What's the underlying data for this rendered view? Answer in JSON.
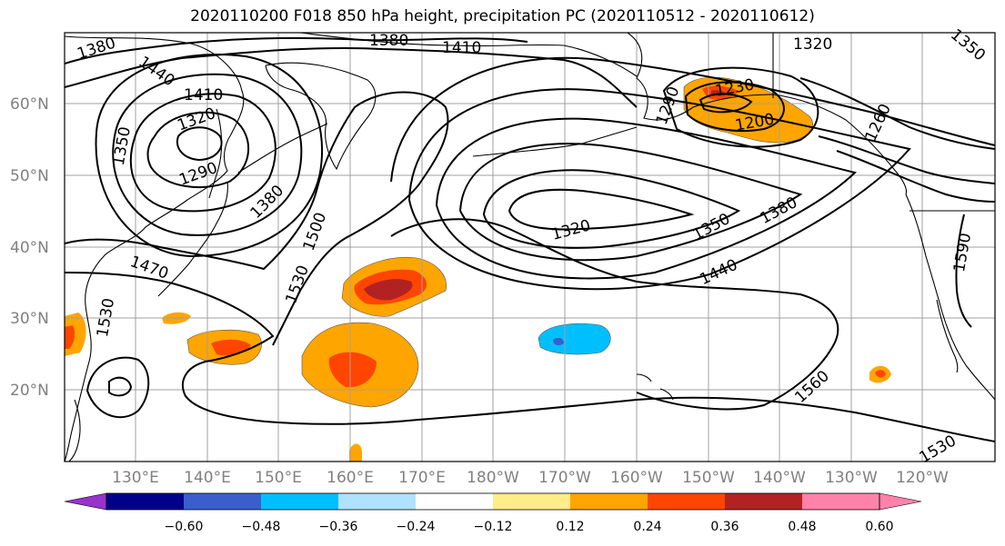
{
  "title": "2020110200 F018 850 hPa height, precipitation PC (2020110512 - 2020110612)",
  "lat_labels": [
    "60°N",
    "50°N",
    "40°N",
    "30°N",
    "20°N"
  ],
  "lon_labels": [
    "130°E",
    "140°E",
    "150°E",
    "160°E",
    "170°E",
    "180°W",
    "170°W",
    "160°W",
    "150°W",
    "140°W",
    "130°W",
    "120°W"
  ],
  "contour_labels": [
    "1380",
    "1380",
    "1410",
    "1320",
    "1350",
    "1440",
    "1410",
    "1320",
    "1350",
    "1290",
    "1380",
    "1500",
    "1470",
    "1530",
    "1530",
    "1320",
    "1350",
    "1380",
    "1440",
    "1290",
    "1230",
    "1200",
    "1260",
    "1590",
    "1560",
    "1530"
  ],
  "colorbar": {
    "ticks": [
      "−0.60",
      "−0.48",
      "−0.36",
      "−0.24",
      "−0.12",
      "0.12",
      "0.24",
      "0.36",
      "0.48",
      "0.60"
    ],
    "colors": [
      "#9932cc",
      "#00008b",
      "#3a5fcd",
      "#00bfff",
      "#b0e2ff",
      "#ffffff",
      "#ffec8b",
      "#ffa500",
      "#ff4500",
      "#b22222",
      "#ff82ab"
    ]
  }
}
